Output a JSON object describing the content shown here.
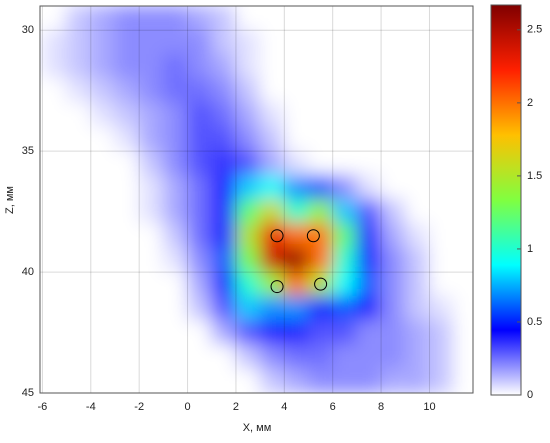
{
  "chart_data": {
    "type": "heatmap",
    "xlabel": "X, мм",
    "ylabel": "Z, мм",
    "x": [
      -5.5,
      -4.5,
      -3.5,
      -2.5,
      -1.5,
      -0.5,
      0.5,
      1.5,
      2.5,
      3.5,
      4.5,
      5.5,
      6.5,
      7.5,
      8.5,
      9.5,
      10.5,
      11.5
    ],
    "y": [
      29.5,
      30.5,
      31.5,
      32.5,
      33.5,
      34.5,
      35.5,
      36.5,
      37.5,
      38.5,
      39.5,
      40.5,
      41.5,
      42.5,
      43.5,
      44.5
    ],
    "z": [
      [
        0,
        0.1,
        0.15,
        0.2,
        0.2,
        0.2,
        0.15,
        0.1,
        0,
        0,
        0,
        0,
        0,
        0,
        0,
        0,
        0,
        0
      ],
      [
        0.05,
        0.1,
        0.15,
        0.2,
        0.2,
        0.2,
        0.2,
        0.1,
        0.05,
        0,
        0,
        0,
        0,
        0,
        0,
        0,
        0,
        0
      ],
      [
        0.05,
        0.1,
        0.15,
        0.2,
        0.2,
        0.25,
        0.2,
        0.15,
        0.05,
        0,
        0,
        0,
        0,
        0,
        0,
        0,
        0,
        0
      ],
      [
        0,
        0.05,
        0.1,
        0.15,
        0.2,
        0.25,
        0.25,
        0.2,
        0.1,
        0,
        0,
        0,
        0,
        0,
        0,
        0,
        0,
        0
      ],
      [
        0,
        0,
        0.05,
        0.1,
        0.15,
        0.2,
        0.3,
        0.25,
        0.15,
        0.05,
        0,
        0,
        0,
        0,
        0,
        0,
        0,
        0
      ],
      [
        0,
        0,
        0,
        0.05,
        0.15,
        0.2,
        0.3,
        0.3,
        0.2,
        0.1,
        0,
        0,
        0,
        0,
        0,
        0,
        0,
        0
      ],
      [
        0,
        0,
        0,
        0,
        0.1,
        0.2,
        0.3,
        0.35,
        0.3,
        0.15,
        0.05,
        0,
        0,
        0,
        0,
        0,
        0,
        0
      ],
      [
        0,
        0,
        0,
        0,
        0.05,
        0.15,
        0.25,
        0.4,
        0.8,
        0.9,
        0.7,
        0.6,
        0.2,
        0.05,
        0,
        0,
        0,
        0
      ],
      [
        0,
        0,
        0,
        0,
        0.05,
        0.15,
        0.25,
        0.4,
        1.2,
        1.6,
        1.0,
        1.4,
        0.8,
        0.3,
        0.1,
        0,
        0,
        0
      ],
      [
        0,
        0,
        0,
        0,
        0,
        0.1,
        0.25,
        0.5,
        1.5,
        2.3,
        2.0,
        2.0,
        1.2,
        0.4,
        0.15,
        0.05,
        0,
        0
      ],
      [
        0,
        0,
        0,
        0,
        0,
        0.05,
        0.2,
        0.6,
        1.3,
        2.4,
        2.6,
        2.0,
        1.0,
        0.5,
        0.2,
        0.1,
        0,
        0
      ],
      [
        0,
        0,
        0,
        0,
        0,
        0,
        0.15,
        0.5,
        1.0,
        1.4,
        2.0,
        1.5,
        0.9,
        0.6,
        0.2,
        0.1,
        0,
        0
      ],
      [
        0,
        0,
        0,
        0,
        0,
        0,
        0.1,
        0.3,
        0.8,
        0.7,
        0.7,
        0.5,
        0.6,
        0.4,
        0.2,
        0.1,
        0.05,
        0
      ],
      [
        0,
        0,
        0,
        0,
        0,
        0,
        0,
        0.15,
        0.3,
        0.4,
        0.4,
        0.3,
        0.3,
        0.2,
        0.2,
        0.15,
        0.1,
        0
      ],
      [
        0,
        0,
        0,
        0,
        0,
        0,
        0,
        0,
        0.1,
        0.2,
        0.25,
        0.25,
        0.2,
        0.2,
        0.2,
        0.15,
        0.1,
        0
      ],
      [
        0,
        0,
        0,
        0,
        0,
        0,
        0,
        0,
        0,
        0.1,
        0.15,
        0.2,
        0.2,
        0.2,
        0.15,
        0.15,
        0.1,
        0
      ]
    ],
    "xlim": [
      -6.1,
      11.8
    ],
    "xticks": [
      -6,
      -4,
      -2,
      0,
      2,
      4,
      6,
      8,
      10
    ],
    "ylim": [
      29,
      45
    ],
    "invert_y": true,
    "yticks": [
      30,
      35,
      40,
      45
    ],
    "grid": true,
    "colormap": [
      "#ffffff",
      "#0000ff",
      "#00ffff",
      "#80ff40",
      "#ffc000",
      "#ff2000",
      "#800000"
    ],
    "clim": [
      0,
      2.67
    ],
    "cticks": [
      0,
      0.5,
      1,
      1.5,
      2,
      2.5
    ],
    "markers": {
      "x": [
        3.7,
        5.2,
        3.7,
        5.5
      ],
      "y": [
        38.5,
        38.5,
        40.6,
        40.5
      ],
      "color": "#000000"
    }
  }
}
